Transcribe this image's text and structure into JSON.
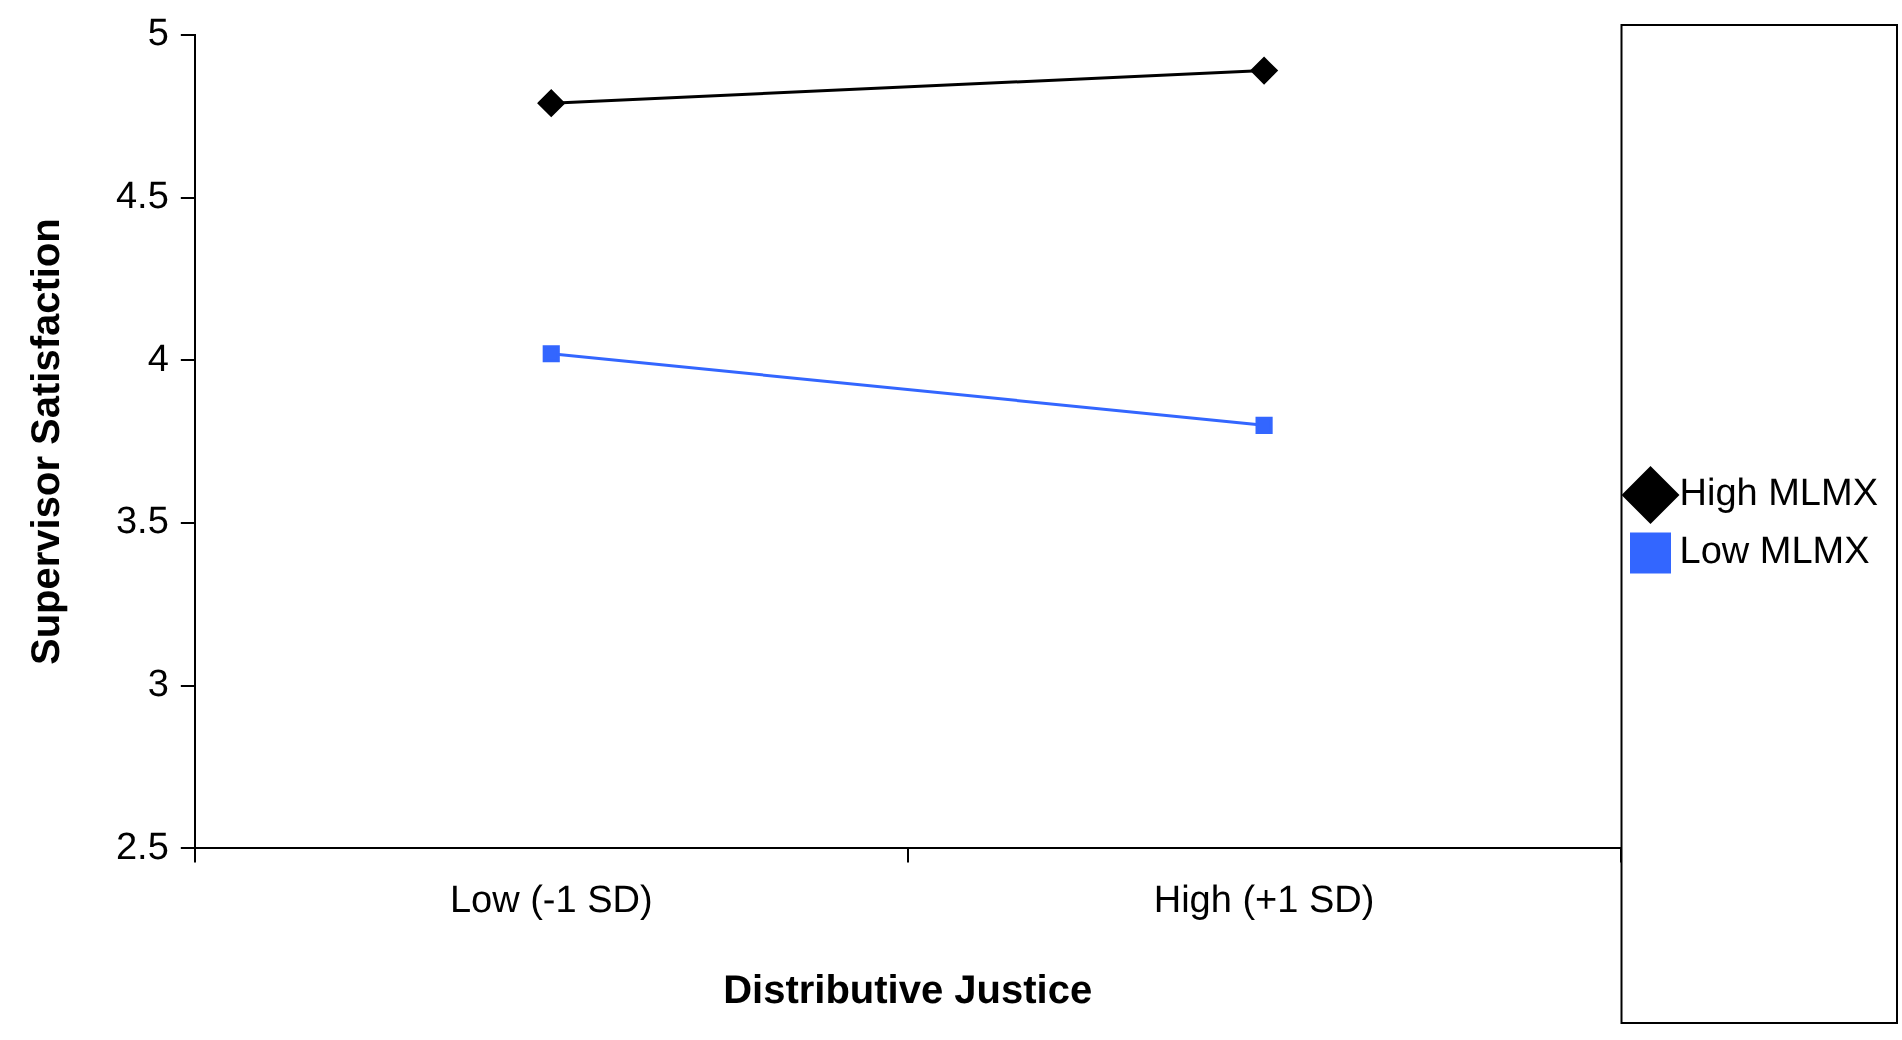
{
  "chart_data": {
    "type": "line",
    "xlabel": "Distributive Justice",
    "ylabel": "Supervisor Satisfaction",
    "categories": [
      "Low (-1 SD)",
      "High (+1 SD)"
    ],
    "series": [
      {
        "name": "High MLMX",
        "color": "#000000",
        "values": [
          4.79,
          4.89
        ],
        "marker": "diamond"
      },
      {
        "name": "Low MLMX",
        "color": "#3366ff",
        "values": [
          4.02,
          3.8
        ],
        "marker": "square"
      }
    ],
    "ylim": [
      2.5,
      5
    ],
    "yticks": [
      2.5,
      3,
      3.5,
      4,
      4.5,
      5
    ],
    "grid": false,
    "legend": "right",
    "line_style": "solid"
  }
}
